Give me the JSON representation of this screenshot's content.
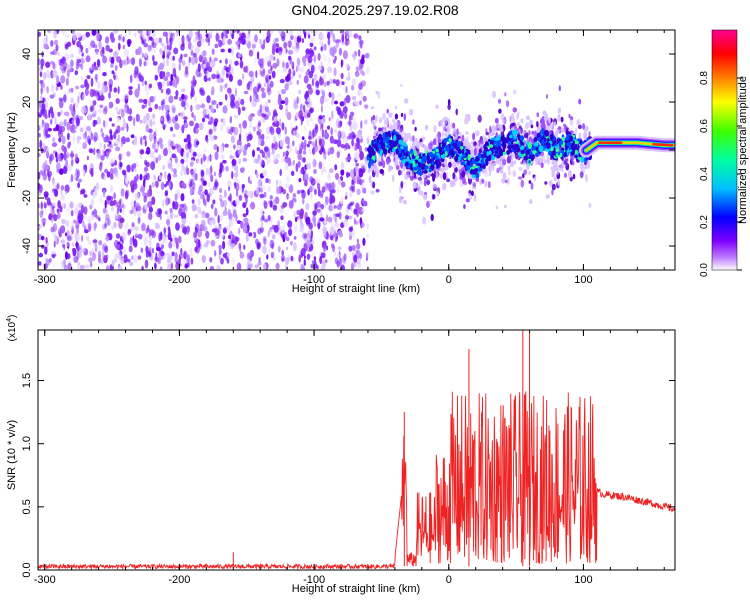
{
  "title": "GN04.2025.297.19.02.R08",
  "chart_data": [
    {
      "type": "heatmap",
      "xlabel": "Height of straight line (km)",
      "ylabel": "Frequency (Hz)",
      "xlim": [
        -305,
        168
      ],
      "ylim": [
        -50,
        50
      ],
      "xticks": [
        -300,
        -200,
        -100,
        0,
        100
      ],
      "xtick_labels": [
        "-300",
        "-200",
        "-100",
        "0",
        "100"
      ],
      "yticks": [
        -40,
        -20,
        0,
        20,
        40
      ],
      "ytick_labels": [
        "-40",
        "-20",
        "0",
        "20",
        "40"
      ],
      "colorbar": {
        "label": "Normalized spectral amplitude",
        "range": [
          0,
          1
        ],
        "ticks": [
          0.0,
          0.2,
          0.4,
          0.6,
          0.8
        ],
        "tick_labels": [
          "0.0",
          "0.2",
          "0.4",
          "0.6",
          "0.8"
        ],
        "colors": [
          "#ffffff",
          "#8000ff",
          "#0000ff",
          "#00e0ff",
          "#00ff40",
          "#ffff00",
          "#ff8000",
          "#ff0000",
          "#ff00a0"
        ]
      },
      "noise_region": [
        -305,
        -60
      ],
      "signal_track": [
        {
          "x": -60,
          "f": -3
        },
        {
          "x": -50,
          "f": 2
        },
        {
          "x": -40,
          "f": 4
        },
        {
          "x": -30,
          "f": -4
        },
        {
          "x": -20,
          "f": -6
        },
        {
          "x": -10,
          "f": -4
        },
        {
          "x": 0,
          "f": 2
        },
        {
          "x": 10,
          "f": -2
        },
        {
          "x": 20,
          "f": -8
        },
        {
          "x": 30,
          "f": 0
        },
        {
          "x": 40,
          "f": 2
        },
        {
          "x": 50,
          "f": 4
        },
        {
          "x": 60,
          "f": -2
        },
        {
          "x": 70,
          "f": 5
        },
        {
          "x": 80,
          "f": 0
        },
        {
          "x": 90,
          "f": 3
        },
        {
          "x": 100,
          "f": -1
        },
        {
          "x": 110,
          "f": 3
        },
        {
          "x": 120,
          "f": 3
        },
        {
          "x": 140,
          "f": 3
        },
        {
          "x": 160,
          "f": 2
        },
        {
          "x": 168,
          "f": 2
        }
      ]
    },
    {
      "type": "line",
      "xlabel": "Height of straight line (km)",
      "ylabel": "SNR (10 * v/v)",
      "y_multiplier_label": "(x10",
      "y_multiplier_exp": "4",
      "xlim": [
        -305,
        168
      ],
      "ylim": [
        0,
        1.9
      ],
      "xticks": [
        -300,
        -200,
        -100,
        0,
        100
      ],
      "xtick_labels": [
        "-300",
        "-200",
        "-100",
        "0",
        "100"
      ],
      "yticks": [
        0.0,
        0.5,
        1.0,
        1.5
      ],
      "ytick_labels": [
        "0.0",
        "0.5",
        "1.0",
        "1.5"
      ],
      "color": "#ee2222",
      "series": [
        {
          "x": [
            -305,
            -250,
            -200,
            -150,
            -100,
            -60,
            -40,
            -33,
            -30,
            -25,
            -20,
            -10,
            0,
            20,
            40,
            60,
            80,
            100,
            110,
            115,
            130,
            150,
            168
          ],
          "y": [
            0.02,
            0.02,
            0.02,
            0.02,
            0.02,
            0.03,
            0.1,
            0.8,
            0.05,
            0.12,
            0.3,
            0.55,
            0.65,
            0.75,
            0.8,
            0.85,
            0.8,
            0.75,
            0.62,
            0.6,
            0.58,
            0.53,
            0.48
          ]
        }
      ],
      "peaks": [
        {
          "x": -160,
          "y": 0.14
        },
        {
          "x": -33,
          "y": 1.25
        },
        {
          "x": 15,
          "y": 1.75
        },
        {
          "x": 55,
          "y": 1.9
        },
        {
          "x": 60,
          "y": 1.88
        }
      ]
    }
  ]
}
